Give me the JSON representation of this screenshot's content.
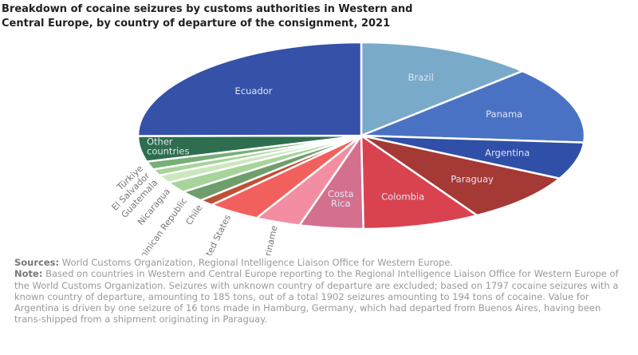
{
  "chart_data": {
    "type": "pie",
    "title": "Breakdown of cocaine seizures by customs authorities in Western and Central Europe, by country of departure of the consignment, 2021",
    "title_lines": [
      "Breakdown of cocaine seizures by customs authorities in Western and",
      "Central Europe, by country of departure of the consignment, 2021"
    ],
    "unit": "percent (estimated)",
    "slices": [
      {
        "label": "Brazil",
        "value": 12.8,
        "color": "#79aac9",
        "inside": true
      },
      {
        "label": "Panama",
        "value": 13.3,
        "color": "#4a72c4",
        "inside": true
      },
      {
        "label": "Argentina",
        "value": 6.4,
        "color": "#2f4fa8",
        "inside": true
      },
      {
        "label": "Paraguay",
        "value": 8.7,
        "color": "#a53935",
        "inside": true
      },
      {
        "label": "Colombia",
        "value": 8.5,
        "color": "#d8434f",
        "inside": true
      },
      {
        "label": "Costa Rica",
        "value": 4.6,
        "color": "#d4708e",
        "inside": true
      },
      {
        "label": "Suriname",
        "value": 3.3,
        "color": "#f38ea2",
        "inside": false
      },
      {
        "label": "United States",
        "value": 3.9,
        "color": "#f2605e",
        "inside": false
      },
      {
        "label": "Chile",
        "value": 1.1,
        "color": "#bf5036",
        "inside": false
      },
      {
        "label": "Dominican Republic",
        "value": 1.9,
        "color": "#6f9d6c",
        "inside": false
      },
      {
        "label": "Nicaragua",
        "value": 1.9,
        "color": "#a6d49a",
        "inside": false
      },
      {
        "label": "Guatemala",
        "value": 1.4,
        "color": "#cde8bf",
        "inside": false
      },
      {
        "label": "El Salvador",
        "value": 1.1,
        "color": "#a6d49a",
        "inside": false
      },
      {
        "label": "Türkiye",
        "value": 1.4,
        "color": "#78ae77",
        "inside": false
      },
      {
        "label": "Other countries",
        "value": 4.4,
        "color": "#2e6e4e",
        "inside": true
      },
      {
        "label": "Ecuador",
        "value": 25.0,
        "color": "#3551a8",
        "inside": true
      }
    ]
  },
  "notes": {
    "sources_label": "Sources:",
    "sources_text": "World Customs Organization, Regional Intelligence Liaison Office for Western Europe.",
    "note_label": "Note:",
    "note_text": "Based on countries in Western and Central Europe reporting to the Regional Intelligence Liaison Office for Western Europe of the World Customs Organization. Seizures with unknown country of departure are excluded; based on 1797 cocaine seizures with a known country of departure, amounting to 185 tons, out of a total 1902 seizures amounting to 194 tons of cocaine. Value for Argentina is driven by one seizure of 16 tons made in Hamburg, Germany, which had departed from Buenos Aires, having been trans-shipped from a shipment originating in Paraguay."
  }
}
